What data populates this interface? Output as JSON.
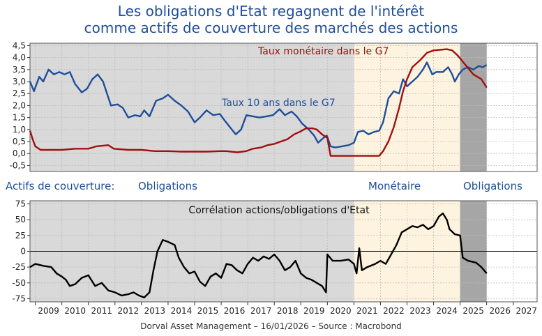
{
  "title_line1": "Les obligations d'Etat regagnent de l'intérêt",
  "title_line2": "comme actifs de couverture des marchés des actions",
  "footer": "Dorval Asset Management – 16/01/2026  –   Source : Macrobond",
  "regime_label": "Actifs de couverture:",
  "regimes": [
    "Obligations",
    "Monétaire",
    "Obligations"
  ],
  "colors": {
    "title": "#1f4e9a",
    "bond_yield": "#1f4e9a",
    "money_rate": "#a01010",
    "correlation": "#000000",
    "shade_bonds": "#d9d9d9",
    "shade_money": "#fdf3df",
    "shade_recent": "#a6a6a6"
  },
  "chart_data": [
    {
      "type": "line",
      "title": "",
      "x_range": [
        2008.8,
        2027.9
      ],
      "ylim": [
        -0.75,
        4.6
      ],
      "yticks": [
        "4,5",
        "4,0",
        "3,5",
        "3,0",
        "2,5",
        "2,0",
        "1,5",
        "1,0",
        "0,5",
        "0,0",
        "-0,5"
      ],
      "ytick_values": [
        4.5,
        4.0,
        3.5,
        3.0,
        2.5,
        2.0,
        1.5,
        1.0,
        0.5,
        0.0,
        -0.5
      ],
      "regime_periods": [
        {
          "regime": "Obligations",
          "from": 2008.8,
          "to": 2021.0
        },
        {
          "regime": "Monétaire",
          "from": 2021.0,
          "to": 2025.0
        },
        {
          "regime": "Obligations",
          "from": 2025.0,
          "to": 2026.0
        }
      ],
      "series": [
        {
          "name": "Taux 10 ans dans le G7",
          "label": "Taux 10 ans dans le G7",
          "points": [
            [
              2008.8,
              3.0
            ],
            [
              2008.95,
              2.6
            ],
            [
              2009.15,
              3.2
            ],
            [
              2009.3,
              3.0
            ],
            [
              2009.5,
              3.5
            ],
            [
              2009.7,
              3.3
            ],
            [
              2009.9,
              3.4
            ],
            [
              2010.1,
              3.3
            ],
            [
              2010.3,
              3.4
            ],
            [
              2010.5,
              2.9
            ],
            [
              2010.75,
              2.55
            ],
            [
              2010.95,
              2.7
            ],
            [
              2011.15,
              3.1
            ],
            [
              2011.35,
              3.3
            ],
            [
              2011.55,
              3.0
            ],
            [
              2011.7,
              2.5
            ],
            [
              2011.85,
              2.0
            ],
            [
              2012.1,
              2.05
            ],
            [
              2012.3,
              1.9
            ],
            [
              2012.5,
              1.5
            ],
            [
              2012.75,
              1.6
            ],
            [
              2012.95,
              1.55
            ],
            [
              2013.1,
              1.8
            ],
            [
              2013.3,
              1.55
            ],
            [
              2013.55,
              2.2
            ],
            [
              2013.8,
              2.3
            ],
            [
              2014.0,
              2.45
            ],
            [
              2014.25,
              2.2
            ],
            [
              2014.5,
              2.0
            ],
            [
              2014.75,
              1.75
            ],
            [
              2015.0,
              1.3
            ],
            [
              2015.2,
              1.5
            ],
            [
              2015.45,
              1.8
            ],
            [
              2015.7,
              1.6
            ],
            [
              2015.95,
              1.65
            ],
            [
              2016.15,
              1.35
            ],
            [
              2016.4,
              1.0
            ],
            [
              2016.55,
              0.8
            ],
            [
              2016.75,
              1.0
            ],
            [
              2016.95,
              1.6
            ],
            [
              2017.2,
              1.55
            ],
            [
              2017.45,
              1.5
            ],
            [
              2017.7,
              1.55
            ],
            [
              2017.95,
              1.6
            ],
            [
              2018.2,
              1.85
            ],
            [
              2018.4,
              1.6
            ],
            [
              2018.65,
              1.75
            ],
            [
              2018.85,
              1.55
            ],
            [
              2019.05,
              1.25
            ],
            [
              2019.3,
              1.0
            ],
            [
              2019.5,
              0.75
            ],
            [
              2019.65,
              0.45
            ],
            [
              2019.85,
              0.65
            ],
            [
              2019.98,
              0.75
            ],
            [
              2020.12,
              0.3
            ],
            [
              2020.3,
              0.25
            ],
            [
              2020.55,
              0.3
            ],
            [
              2020.8,
              0.35
            ],
            [
              2021.0,
              0.45
            ],
            [
              2021.15,
              0.9
            ],
            [
              2021.35,
              0.95
            ],
            [
              2021.55,
              0.8
            ],
            [
              2021.75,
              0.9
            ],
            [
              2021.95,
              0.95
            ],
            [
              2022.1,
              1.3
            ],
            [
              2022.3,
              2.3
            ],
            [
              2022.5,
              2.6
            ],
            [
              2022.7,
              2.5
            ],
            [
              2022.85,
              3.1
            ],
            [
              2023.0,
              2.8
            ],
            [
              2023.2,
              3.0
            ],
            [
              2023.4,
              3.2
            ],
            [
              2023.6,
              3.5
            ],
            [
              2023.75,
              3.8
            ],
            [
              2023.95,
              3.3
            ],
            [
              2024.1,
              3.4
            ],
            [
              2024.35,
              3.4
            ],
            [
              2024.55,
              3.6
            ],
            [
              2024.7,
              3.3
            ],
            [
              2024.8,
              3.0
            ],
            [
              2024.95,
              3.3
            ],
            [
              2025.1,
              3.5
            ],
            [
              2025.3,
              3.6
            ],
            [
              2025.5,
              3.5
            ],
            [
              2025.7,
              3.65
            ],
            [
              2025.85,
              3.6
            ],
            [
              2026.0,
              3.7
            ]
          ]
        },
        {
          "name": "Taux monétaire dans le G7",
          "label": "Taux monétaire dans le G7",
          "points": [
            [
              2008.8,
              0.95
            ],
            [
              2008.9,
              0.6
            ],
            [
              2009.0,
              0.3
            ],
            [
              2009.2,
              0.15
            ],
            [
              2010.0,
              0.15
            ],
            [
              2010.5,
              0.2
            ],
            [
              2011.0,
              0.2
            ],
            [
              2011.3,
              0.3
            ],
            [
              2011.75,
              0.35
            ],
            [
              2011.95,
              0.2
            ],
            [
              2012.5,
              0.15
            ],
            [
              2013.0,
              0.15
            ],
            [
              2013.5,
              0.1
            ],
            [
              2014.0,
              0.1
            ],
            [
              2014.5,
              0.08
            ],
            [
              2015.0,
              0.08
            ],
            [
              2015.5,
              0.08
            ],
            [
              2015.95,
              0.1
            ],
            [
              2016.2,
              0.1
            ],
            [
              2016.6,
              0.05
            ],
            [
              2016.95,
              0.1
            ],
            [
              2017.2,
              0.2
            ],
            [
              2017.5,
              0.25
            ],
            [
              2017.75,
              0.35
            ],
            [
              2018.0,
              0.4
            ],
            [
              2018.25,
              0.5
            ],
            [
              2018.5,
              0.6
            ],
            [
              2018.75,
              0.8
            ],
            [
              2018.95,
              0.9
            ],
            [
              2019.2,
              1.05
            ],
            [
              2019.45,
              1.05
            ],
            [
              2019.6,
              1.0
            ],
            [
              2019.8,
              0.8
            ],
            [
              2020.0,
              0.65
            ],
            [
              2020.12,
              -0.1
            ],
            [
              2020.6,
              -0.1
            ],
            [
              2021.0,
              -0.1
            ],
            [
              2021.5,
              -0.1
            ],
            [
              2021.95,
              -0.1
            ],
            [
              2022.1,
              0.1
            ],
            [
              2022.3,
              0.5
            ],
            [
              2022.5,
              1.1
            ],
            [
              2022.7,
              1.9
            ],
            [
              2022.85,
              2.6
            ],
            [
              2023.0,
              3.1
            ],
            [
              2023.2,
              3.6
            ],
            [
              2023.5,
              3.9
            ],
            [
              2023.75,
              4.2
            ],
            [
              2024.0,
              4.3
            ],
            [
              2024.5,
              4.35
            ],
            [
              2024.7,
              4.3
            ],
            [
              2024.9,
              4.1
            ],
            [
              2025.2,
              3.7
            ],
            [
              2025.5,
              3.3
            ],
            [
              2025.8,
              3.1
            ],
            [
              2026.0,
              2.75
            ]
          ]
        }
      ]
    },
    {
      "type": "line",
      "title": "Corrélation actions/obligations d'Etat",
      "xlabel": "",
      "x_range": [
        2008.8,
        2027.9
      ],
      "ylim": [
        -80,
        80
      ],
      "yticks": [
        "75",
        "50",
        "25",
        "0",
        "-25",
        "-50",
        "-75"
      ],
      "ytick_values": [
        75,
        50,
        25,
        0,
        -25,
        -50,
        -75
      ],
      "categories": [
        "2009",
        "2010",
        "2011",
        "2012",
        "2013",
        "2014",
        "2015",
        "2016",
        "2017",
        "2018",
        "2019",
        "2020",
        "2021",
        "2022",
        "2023",
        "2024",
        "2025",
        "2026",
        "2027"
      ],
      "regime_periods": [
        {
          "regime": "Obligations",
          "from": 2008.8,
          "to": 2021.0
        },
        {
          "regime": "Monétaire",
          "from": 2021.0,
          "to": 2025.0
        },
        {
          "regime": "Obligations",
          "from": 2025.0,
          "to": 2026.0
        }
      ],
      "series": [
        {
          "name": "Corrélation actions/obligations d'Etat",
          "points": [
            [
              2008.8,
              -25
            ],
            [
              2009.0,
              -20
            ],
            [
              2009.3,
              -23
            ],
            [
              2009.6,
              -25
            ],
            [
              2009.8,
              -35
            ],
            [
              2010.0,
              -40
            ],
            [
              2010.15,
              -45
            ],
            [
              2010.3,
              -55
            ],
            [
              2010.5,
              -52
            ],
            [
              2010.75,
              -42
            ],
            [
              2011.0,
              -38
            ],
            [
              2011.25,
              -55
            ],
            [
              2011.5,
              -50
            ],
            [
              2011.75,
              -62
            ],
            [
              2012.0,
              -65
            ],
            [
              2012.25,
              -70
            ],
            [
              2012.5,
              -68
            ],
            [
              2012.7,
              -65
            ],
            [
              2012.9,
              -70
            ],
            [
              2013.1,
              -73
            ],
            [
              2013.3,
              -65
            ],
            [
              2013.45,
              -30
            ],
            [
              2013.6,
              0
            ],
            [
              2013.8,
              18
            ],
            [
              2014.0,
              15
            ],
            [
              2014.25,
              10
            ],
            [
              2014.4,
              -10
            ],
            [
              2014.6,
              -25
            ],
            [
              2014.8,
              -35
            ],
            [
              2015.0,
              -32
            ],
            [
              2015.2,
              -48
            ],
            [
              2015.4,
              -55
            ],
            [
              2015.6,
              -40
            ],
            [
              2015.8,
              -35
            ],
            [
              2016.0,
              -42
            ],
            [
              2016.2,
              -20
            ],
            [
              2016.4,
              -22
            ],
            [
              2016.6,
              -30
            ],
            [
              2016.8,
              -35
            ],
            [
              2017.0,
              -20
            ],
            [
              2017.2,
              -10
            ],
            [
              2017.4,
              -15
            ],
            [
              2017.6,
              -8
            ],
            [
              2017.8,
              -12
            ],
            [
              2018.0,
              -5
            ],
            [
              2018.2,
              -15
            ],
            [
              2018.4,
              -30
            ],
            [
              2018.6,
              -25
            ],
            [
              2018.8,
              -15
            ],
            [
              2019.0,
              -35
            ],
            [
              2019.2,
              -42
            ],
            [
              2019.4,
              -45
            ],
            [
              2019.6,
              -50
            ],
            [
              2019.8,
              -55
            ],
            [
              2019.95,
              -65
            ],
            [
              2020.0,
              -5
            ],
            [
              2020.2,
              -15
            ],
            [
              2020.5,
              -15
            ],
            [
              2020.8,
              -13
            ],
            [
              2021.0,
              -20
            ],
            [
              2021.1,
              -35
            ],
            [
              2021.2,
              5
            ],
            [
              2021.3,
              -30
            ],
            [
              2021.5,
              -25
            ],
            [
              2021.8,
              -20
            ],
            [
              2022.0,
              -15
            ],
            [
              2022.2,
              -20
            ],
            [
              2022.4,
              -5
            ],
            [
              2022.6,
              10
            ],
            [
              2022.8,
              30
            ],
            [
              2023.0,
              35
            ],
            [
              2023.2,
              40
            ],
            [
              2023.4,
              38
            ],
            [
              2023.6,
              42
            ],
            [
              2023.8,
              35
            ],
            [
              2024.0,
              40
            ],
            [
              2024.2,
              55
            ],
            [
              2024.35,
              60
            ],
            [
              2024.5,
              50
            ],
            [
              2024.6,
              35
            ],
            [
              2024.8,
              27
            ],
            [
              2025.0,
              25
            ],
            [
              2025.1,
              -10
            ],
            [
              2025.3,
              -15
            ],
            [
              2025.6,
              -18
            ],
            [
              2025.8,
              -25
            ],
            [
              2026.0,
              -35
            ]
          ]
        }
      ]
    }
  ]
}
